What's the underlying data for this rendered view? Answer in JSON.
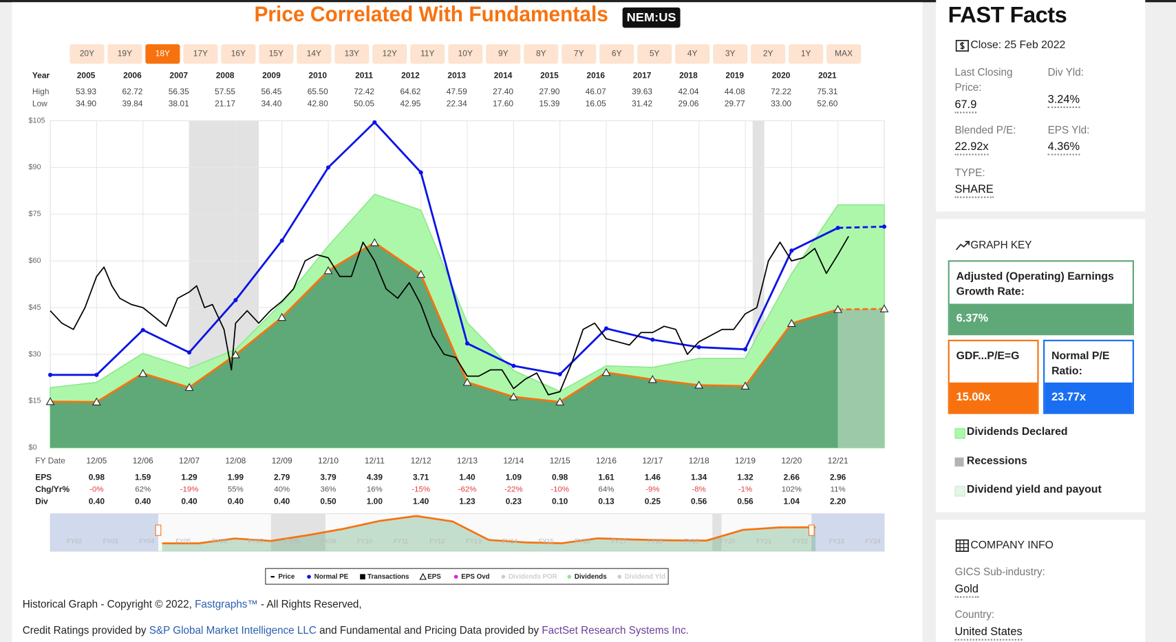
{
  "header": {
    "title": "Price Correlated With Fundamentals",
    "ticker": "NEM:US"
  },
  "ranges": {
    "buttons": [
      "20Y",
      "19Y",
      "18Y",
      "17Y",
      "16Y",
      "15Y",
      "14Y",
      "13Y",
      "12Y",
      "11Y",
      "10Y",
      "9Y",
      "8Y",
      "7Y",
      "6Y",
      "5Y",
      "4Y",
      "3Y",
      "2Y",
      "1Y",
      "MAX"
    ],
    "selected": "18Y"
  },
  "year_table": {
    "labels": [
      "Year",
      "High",
      "Low"
    ],
    "years": [
      "2005",
      "2006",
      "2007",
      "2008",
      "2009",
      "2010",
      "2011",
      "2012",
      "2013",
      "2014",
      "2015",
      "2016",
      "2017",
      "2018",
      "2019",
      "2020",
      "2021"
    ],
    "high": [
      "53.93",
      "62.72",
      "56.35",
      "57.55",
      "56.45",
      "65.50",
      "72.42",
      "64.62",
      "47.59",
      "27.40",
      "27.90",
      "46.07",
      "39.63",
      "42.04",
      "44.08",
      "72.22",
      "75.31"
    ],
    "low": [
      "34.90",
      "39.84",
      "38.01",
      "21.17",
      "34.40",
      "42.80",
      "50.05",
      "42.95",
      "22.34",
      "17.60",
      "15.39",
      "16.05",
      "31.42",
      "29.06",
      "29.77",
      "33.00",
      "52.60"
    ]
  },
  "chart_data": {
    "type": "line",
    "xlim": [
      2004.92,
      2022.92
    ],
    "xticks": [
      {
        "value": 2005.92,
        "label": "12/05"
      },
      {
        "value": 2006.92,
        "label": "12/06"
      },
      {
        "value": 2007.92,
        "label": "12/07"
      },
      {
        "value": 2008.92,
        "label": "12/08"
      },
      {
        "value": 2009.92,
        "label": "12/09"
      },
      {
        "value": 2010.92,
        "label": "12/10"
      },
      {
        "value": 2011.92,
        "label": "12/11"
      },
      {
        "value": 2012.92,
        "label": "12/12"
      },
      {
        "value": 2013.92,
        "label": "12/13"
      },
      {
        "value": 2014.92,
        "label": "12/14"
      },
      {
        "value": 2015.92,
        "label": "12/15"
      },
      {
        "value": 2016.92,
        "label": "12/16"
      },
      {
        "value": 2017.92,
        "label": "12/17"
      },
      {
        "value": 2018.92,
        "label": "12/18"
      },
      {
        "value": 2019.92,
        "label": "12/19"
      },
      {
        "value": 2020.92,
        "label": "12/20"
      },
      {
        "value": 2021.92,
        "label": "12/21"
      }
    ],
    "ylim": [
      0,
      105
    ],
    "yticks": [
      {
        "value": 0,
        "label": "$0"
      },
      {
        "value": 15,
        "label": "$15"
      },
      {
        "value": 30,
        "label": "$30"
      },
      {
        "value": 45,
        "label": "$45"
      },
      {
        "value": 60,
        "label": "$60"
      },
      {
        "value": 75,
        "label": "$75"
      },
      {
        "value": 90,
        "label": "$90"
      },
      {
        "value": 105,
        "label": "$105"
      }
    ],
    "grid": true,
    "recessions": [
      [
        2007.92,
        2009.42
      ],
      [
        2020.08,
        2020.33
      ]
    ],
    "recession_color": "#e2e2e2",
    "series": [
      {
        "style": "area",
        "color": "#adf7ab",
        "edge_color": "#8ee88c",
        "x": [
          2004.92,
          2005.92,
          2006.92,
          2007.92,
          2008.92,
          2009.92,
          2010.92,
          2011.92,
          2012.92,
          2013.92,
          2014.92,
          2015.92,
          2016.92,
          2017.92,
          2018.92,
          2019.92,
          2020.92,
          2021.92,
          2022.92
        ],
        "values": [
          19.3,
          21,
          30.3,
          25.5,
          31.6,
          46.5,
          64.8,
          81.4,
          76.3,
          40.2,
          24.8,
          18.1,
          26.3,
          25.8,
          28.7,
          28.7,
          55.9,
          78,
          78
        ]
      },
      {
        "style": "line",
        "color": "#f7720f",
        "area_color": "#5fa878",
        "forecast_color": "#9ccaa8",
        "marker": "triangle",
        "x": [
          2004.92,
          2005.92,
          2006.92,
          2007.92,
          2008.92,
          2009.92,
          2010.92,
          2011.92,
          2012.92,
          2013.92,
          2014.92,
          2015.92,
          2016.92,
          2017.92,
          2018.92,
          2019.92,
          2020.92,
          2021.92,
          2022.92
        ],
        "values": [
          14.8,
          14.7,
          23.85,
          19.35,
          29.85,
          41.85,
          56.85,
          65.85,
          55.65,
          21,
          16.35,
          14.7,
          24.15,
          21.9,
          20.1,
          19.8,
          39.9,
          44.4,
          44.6
        ]
      },
      {
        "style": "line",
        "color": "#0a14e6",
        "marker": "dot",
        "x": [
          2004.92,
          2005.92,
          2006.92,
          2007.92,
          2008.92,
          2009.92,
          2010.92,
          2011.92,
          2012.92,
          2013.92,
          2014.92,
          2015.92,
          2016.92,
          2017.92,
          2018.92,
          2019.92,
          2020.92,
          2021.92,
          2022.92
        ],
        "values": [
          23.4,
          23.4,
          37.8,
          30.6,
          47.4,
          66.5,
          90,
          104.5,
          88.4,
          33.5,
          26.3,
          23.6,
          38.3,
          34.7,
          32.3,
          31.6,
          63.3,
          70.6,
          71
        ]
      },
      {
        "style": "price",
        "color": "#000000",
        "x": [
          2004.92,
          2005.17,
          2005.42,
          2005.67,
          2005.92,
          2006.08,
          2006.25,
          2006.42,
          2006.67,
          2006.92,
          2007.17,
          2007.42,
          2007.67,
          2007.92,
          2008.08,
          2008.25,
          2008.42,
          2008.67,
          2008.83,
          2008.92,
          2009.17,
          2009.42,
          2009.67,
          2009.92,
          2010.17,
          2010.42,
          2010.67,
          2010.92,
          2011.17,
          2011.42,
          2011.67,
          2011.92,
          2012.17,
          2012.42,
          2012.67,
          2012.92,
          2013.17,
          2013.42,
          2013.67,
          2013.92,
          2014.17,
          2014.42,
          2014.67,
          2014.92,
          2015.17,
          2015.42,
          2015.67,
          2015.92,
          2016.17,
          2016.42,
          2016.67,
          2016.92,
          2017.17,
          2017.42,
          2017.67,
          2017.92,
          2018.17,
          2018.42,
          2018.67,
          2018.92,
          2019.17,
          2019.42,
          2019.67,
          2019.92,
          2020.17,
          2020.42,
          2020.67,
          2020.92,
          2021.17,
          2021.42,
          2021.67,
          2021.92,
          2022.15
        ],
        "values": [
          44,
          40,
          38,
          45,
          55,
          58,
          52,
          48,
          46,
          45,
          42,
          39,
          48,
          50,
          52,
          45,
          46,
          38,
          25,
          40,
          44,
          40,
          44,
          47,
          51,
          60,
          62,
          61,
          55,
          55,
          66,
          60,
          51,
          48,
          53,
          46,
          36,
          30,
          29,
          23,
          23,
          25,
          25,
          19,
          22,
          24,
          17,
          18,
          27,
          38,
          40,
          35,
          34,
          33,
          37,
          37,
          39,
          38,
          30,
          34,
          36,
          38,
          38,
          43,
          45,
          60,
          66,
          60,
          61,
          64,
          56,
          62,
          67.9
        ]
      }
    ],
    "legend": [
      {
        "name": "Price",
        "color": "#000000",
        "symbol": "dash",
        "muted": false
      },
      {
        "name": "Normal PE",
        "color": "#0a14e6",
        "symbol": "dot",
        "muted": false
      },
      {
        "name": "Transactions",
        "color": "#000000",
        "symbol": "square",
        "muted": false
      },
      {
        "name": "EPS",
        "color": "#000000",
        "symbol": "triangle",
        "muted": false
      },
      {
        "name": "EPS Ovd",
        "color": "#e020e0",
        "symbol": "dot",
        "muted": false
      },
      {
        "name": "Dividends POR",
        "color": "#cccccc",
        "symbol": "dot",
        "muted": true
      },
      {
        "name": "Dividends",
        "color": "#8ee88c",
        "symbol": "dot",
        "muted": false
      },
      {
        "name": "Dividend Yld",
        "color": "#cccccc",
        "symbol": "dot",
        "muted": true
      }
    ]
  },
  "fy_table": {
    "labels": [
      "FY Date",
      "EPS",
      "Chg/Yr%",
      "Div"
    ],
    "eps": [
      "0.98",
      "1.59",
      "1.29",
      "1.99",
      "2.79",
      "3.79",
      "4.39",
      "3.71",
      "1.40",
      "1.09",
      "0.98",
      "1.61",
      "1.46",
      "1.34",
      "1.32",
      "2.66",
      "2.96"
    ],
    "chg": [
      "-0%",
      "62%",
      "-19%",
      "55%",
      "40%",
      "36%",
      "16%",
      "-15%",
      "-62%",
      "-22%",
      "-10%",
      "64%",
      "-9%",
      "-8%",
      "-1%",
      "102%",
      "11%"
    ],
    "div": [
      "0.40",
      "0.40",
      "0.40",
      "0.40",
      "0.40",
      "0.50",
      "1.00",
      "1.40",
      "1.23",
      "0.23",
      "0.10",
      "0.13",
      "0.25",
      "0.56",
      "0.56",
      "1.04",
      "2.20"
    ]
  },
  "navigator": {
    "labels": [
      "FY02",
      "FY03",
      "FY04",
      "FY05",
      "FY06",
      "FY07",
      "FY08",
      "FY09",
      "FY10",
      "FY11",
      "FY12",
      "FY13",
      "FY14",
      "FY15",
      "FY16",
      "FY17",
      "FY18",
      "FY19",
      "FY20",
      "FY21",
      "FY22",
      "FY23",
      "FY24"
    ]
  },
  "footer": {
    "line1": [
      "Historical Graph - Copyright © 2022, ",
      "Fastgraphs™",
      " - All Rights Reserved,"
    ],
    "line2": [
      "Credit Ratings provided by ",
      "S&P Global Market Intelligence LLC",
      " and Fundamental and Pricing Data provided by ",
      "FactSet Research Systems Inc."
    ]
  },
  "fast_facts": {
    "title": "FAST Facts",
    "close": "Close: 25 Feb 2022",
    "items": [
      {
        "label": "Last Closing Price:",
        "value": "67.9"
      },
      {
        "label": "Div Yld:",
        "value": "3.24%"
      },
      {
        "label": "Blended P/E:",
        "value": "22.92x"
      },
      {
        "label": "EPS Yld:",
        "value": "4.36%"
      },
      {
        "label": "TYPE:",
        "value": "SHARE"
      }
    ]
  },
  "graph_key": {
    "title": "GRAPH KEY",
    "boxes": [
      {
        "label": "Adjusted (Operating) Earnings Growth Rate:",
        "value": "6.37%"
      },
      {
        "label": "GDF...P/E=G",
        "value": "15.00x"
      },
      {
        "label": "Normal P/E Ratio:",
        "value": "23.77x"
      }
    ],
    "items": [
      "Dividends Declared",
      "Recessions",
      "Dividend yield and payout"
    ]
  },
  "company_info": {
    "title": "COMPANY INFO",
    "items": [
      {
        "label": "GICS Sub-industry:",
        "value": "Gold"
      },
      {
        "label": "Country:",
        "value": "United States"
      }
    ]
  }
}
